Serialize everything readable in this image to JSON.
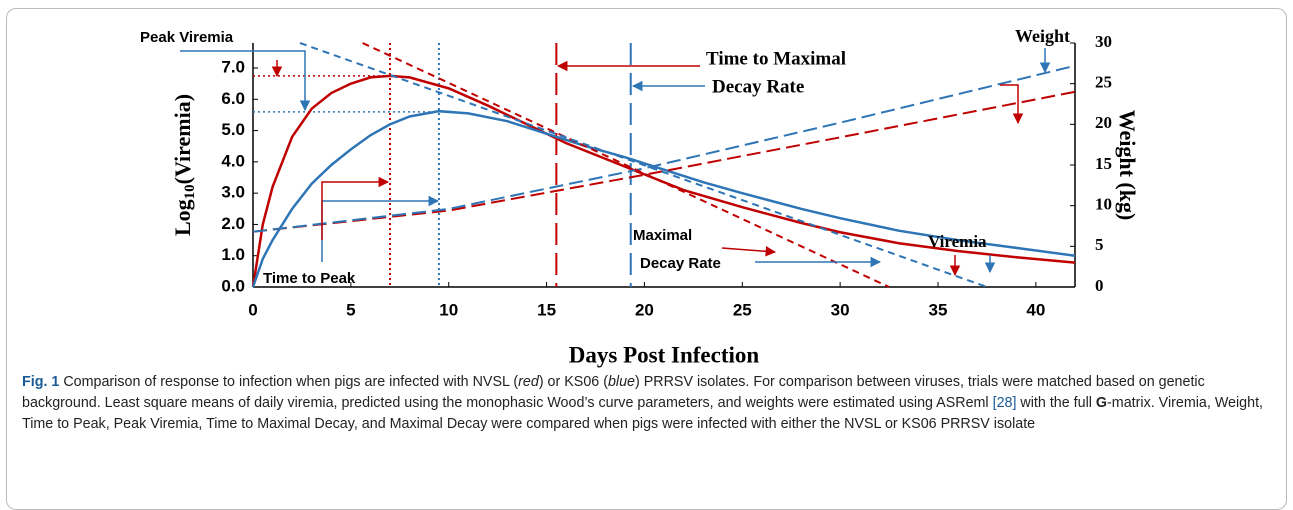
{
  "chart_data": {
    "type": "line",
    "x_label": "Days Post Infection",
    "y_label": {
      "main": "Log",
      "sub": "10",
      "rest": "(Viremia)"
    },
    "y2_label": "Weight (kg)",
    "xlim": [
      0,
      42
    ],
    "xticks": [
      0,
      5,
      10,
      15,
      20,
      25,
      30,
      35,
      40
    ],
    "ylim": [
      0,
      7.8
    ],
    "yticks": [
      {
        "value": 0,
        "label": "0.0"
      },
      {
        "value": 1,
        "label": "1.0"
      },
      {
        "value": 2,
        "label": "2.0"
      },
      {
        "value": 3,
        "label": "3.0"
      },
      {
        "value": 4,
        "label": "4.0"
      },
      {
        "value": 5,
        "label": "5.0"
      },
      {
        "value": 6,
        "label": "6.0"
      },
      {
        "value": 7,
        "label": "7.0"
      }
    ],
    "y2lim": [
      0,
      30
    ],
    "y2ticks": [
      0,
      5,
      10,
      15,
      20,
      25,
      30
    ],
    "series": [
      {
        "color": "#c00000",
        "style": "solid",
        "x": [
          0,
          0.5,
          1,
          2,
          3,
          4,
          5,
          6,
          7,
          8,
          10,
          12,
          14,
          16,
          18,
          20,
          22,
          25,
          28,
          30,
          33,
          36,
          39,
          42
        ],
        "values": [
          0,
          2.0,
          3.2,
          4.8,
          5.7,
          6.2,
          6.5,
          6.7,
          6.75,
          6.7,
          6.35,
          5.8,
          5.2,
          4.6,
          4.1,
          3.6,
          3.1,
          2.55,
          2.05,
          1.75,
          1.4,
          1.15,
          0.95,
          0.78
        ]
      },
      {
        "color": "#2e75b6",
        "style": "solid",
        "x": [
          0,
          0.5,
          1,
          2,
          3,
          4,
          5,
          6,
          7,
          8,
          9.5,
          11,
          13,
          15,
          17,
          19,
          21,
          23,
          25,
          28,
          30,
          33,
          36,
          39,
          42
        ],
        "values": [
          0,
          0.9,
          1.5,
          2.5,
          3.3,
          3.9,
          4.4,
          4.85,
          5.2,
          5.45,
          5.62,
          5.55,
          5.3,
          4.9,
          4.5,
          4.15,
          3.75,
          3.35,
          3.0,
          2.5,
          2.2,
          1.8,
          1.5,
          1.25,
          1.0
        ]
      },
      {
        "color": "#c00000",
        "style": "dashed",
        "axis": "y2",
        "x": [
          0,
          10,
          20,
          30,
          42
        ],
        "values": [
          6.8,
          9.4,
          13.8,
          18.4,
          24
        ]
      },
      {
        "color": "#2e75b6",
        "style": "dashed",
        "axis": "y2",
        "x": [
          0,
          10,
          20,
          30,
          42
        ],
        "values": [
          6.8,
          9.6,
          14.6,
          20.2,
          27.2
        ]
      },
      {
        "color": "#c00000",
        "style": "short-dashed",
        "x": [
          5.6,
          32.5
        ],
        "values": [
          7.8,
          0
        ]
      },
      {
        "color": "#2e75b6",
        "style": "short-dashed",
        "x": [
          2.4,
          37.5
        ],
        "values": [
          7.8,
          0
        ]
      }
    ],
    "vlines": [
      {
        "x": 7,
        "color": "#c00000",
        "style": "dotted"
      },
      {
        "x": 9.5,
        "color": "#2e75b6",
        "style": "dotted"
      },
      {
        "x": 15.5,
        "color": "#c00000",
        "style": "long-dashed"
      },
      {
        "x": 19.3,
        "color": "#2e75b6",
        "style": "long-dashed"
      }
    ],
    "hlines": [
      {
        "y": 6.75,
        "x_end": 7,
        "color": "#c00000"
      },
      {
        "y": 5.6,
        "x_end": 9.5,
        "color": "#2e75b6"
      }
    ],
    "annotations": [
      "Peak Viremia",
      "Time to Peak",
      "Time to Maximal",
      "Decay Rate",
      "Weight",
      "Viremia",
      "Maximal",
      "Decay Rate"
    ]
  },
  "caption": {
    "label": "Fig. 1",
    "parts": [
      " Comparison of response to infection when pigs are infected with NVSL (",
      "red",
      ") or KS06 (",
      "blue",
      ") PRRSV isolates. For comparison between viruses, trials were matched based on genetic background. Least square means of daily viremia, predicted using the monophasic Wood’s curve parameters, and weights were estimated using ASReml ",
      "[28]",
      " with the full ",
      "G",
      "-matrix. Viremia, Weight, Time to Peak, Peak Viremia, Time to Maximal Decay, and Maximal Decay were compared when pigs were infected with either the NVSL or KS06 PRRSV isolate"
    ]
  }
}
